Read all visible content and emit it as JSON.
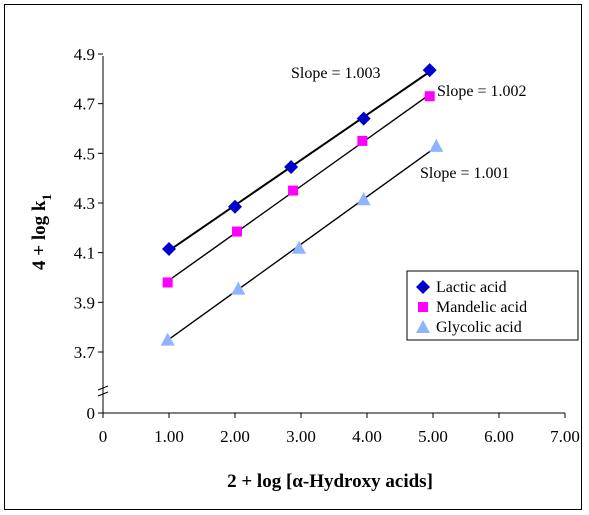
{
  "chart_data": {
    "type": "scatter",
    "xlabel": "2 + log [α-Hydroxy acids]",
    "ylabel_main": "4 + log k",
    "ylabel_sub": "1",
    "xlim": [
      0,
      7
    ],
    "x_ticks": [
      "0",
      "1.00",
      "2.00",
      "3.00",
      "4.00",
      "5.00",
      "6.00",
      "7.00"
    ],
    "y_axis_break": true,
    "y_ticks": [
      "0",
      "3.7",
      "3.9",
      "4.1",
      "4.3",
      "4.5",
      "4.7",
      "4.9"
    ],
    "y_tick_values": [
      3.7,
      3.9,
      4.1,
      4.3,
      4.5,
      4.7,
      4.9
    ],
    "grid": false,
    "legend_position": "right",
    "series": [
      {
        "name": "Lactic acid",
        "marker": "diamond",
        "color": "#0000CC",
        "x": [
          1.0,
          2.0,
          2.85,
          3.95,
          4.95
        ],
        "y": [
          4.115,
          4.285,
          4.445,
          4.64,
          4.835
        ],
        "fit_line": true,
        "slope_label": "Slope = 1.003"
      },
      {
        "name": "Mandelic acid",
        "marker": "square",
        "color": "#FF00FF",
        "x": [
          0.98,
          2.03,
          2.88,
          3.93,
          4.95
        ],
        "y": [
          3.98,
          4.185,
          4.35,
          4.55,
          4.73
        ],
        "fit_line": true,
        "slope_label": "Slope = 1.002"
      },
      {
        "name": "Glycolic acid",
        "marker": "triangle",
        "color": "#8FB4FF",
        "x": [
          0.98,
          2.05,
          2.97,
          3.95,
          5.05
        ],
        "y": [
          3.75,
          3.955,
          4.12,
          4.315,
          4.53
        ],
        "fit_line": true,
        "slope_label": "Slope = 1.001"
      }
    ]
  }
}
